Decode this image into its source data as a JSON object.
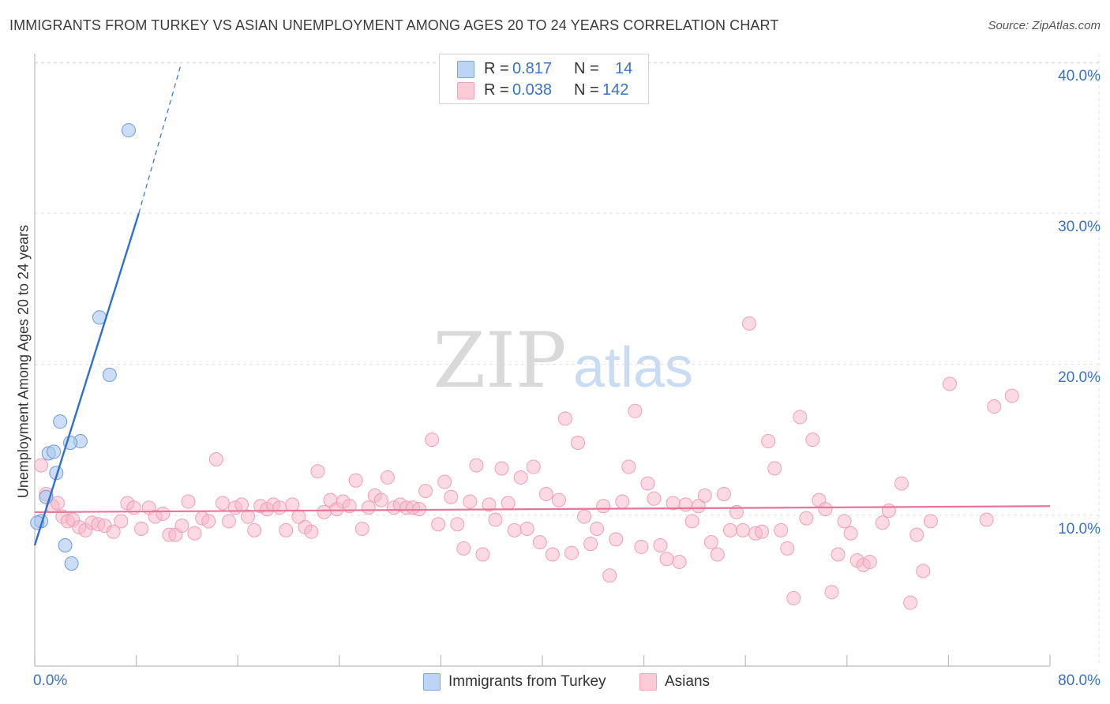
{
  "title": "IMMIGRANTS FROM TURKEY VS ASIAN UNEMPLOYMENT AMONG AGES 20 TO 24 YEARS CORRELATION CHART",
  "source": "Source: ZipAtlas.com",
  "watermark": {
    "zip": "ZIP",
    "atlas": "atlas"
  },
  "legend": {
    "series1": {
      "r_label": "R =",
      "r_value": "0.817",
      "n_label": "N =",
      "n_value": "14"
    },
    "series2": {
      "r_label": "R =",
      "r_value": "0.038",
      "n_label": "N =",
      "n_value": "142"
    }
  },
  "chart_data": {
    "type": "scatter",
    "title": "IMMIGRANTS FROM TURKEY VS ASIAN UNEMPLOYMENT AMONG AGES 20 TO 24 YEARS CORRELATION CHART",
    "xlabel": "",
    "ylabel": "Unemployment Among Ages 20 to 24 years",
    "xlim": [
      0,
      80
    ],
    "ylim": [
      0,
      40
    ],
    "x_tick_labels": [
      "0.0%",
      "80.0%"
    ],
    "y_ticks": [
      10,
      20,
      30,
      40
    ],
    "y_tick_labels": [
      "10.0%",
      "20.0%",
      "30.0%",
      "40.0%"
    ],
    "colors": {
      "series1": "#a9c8ef",
      "series1_line": "#2f6fce",
      "series2": "#f7b6c8",
      "series2_line": "#e8749a",
      "tick": "#3a72c4"
    },
    "series": [
      {
        "name": "Immigrants from Turkey",
        "r": 0.817,
        "n": 14,
        "trend": {
          "x0": 0.0,
          "y0": 8.0,
          "x1": 8.2,
          "y1": 30.0,
          "dash_to_x": 11.5,
          "dash_to_y": 39.8
        },
        "points": [
          [
            7.4,
            35.5
          ],
          [
            5.1,
            23.1
          ],
          [
            5.9,
            19.3
          ],
          [
            2.0,
            16.2
          ],
          [
            3.6,
            14.9
          ],
          [
            2.8,
            14.8
          ],
          [
            1.1,
            14.1
          ],
          [
            1.5,
            14.2
          ],
          [
            1.7,
            12.8
          ],
          [
            0.9,
            11.2
          ],
          [
            0.5,
            9.6
          ],
          [
            0.2,
            9.5
          ],
          [
            2.4,
            8.0
          ],
          [
            2.9,
            6.8
          ]
        ]
      },
      {
        "name": "Asians",
        "r": 0.038,
        "n": 142,
        "trend": {
          "x0": 0.0,
          "y0": 10.2,
          "x1": 80.0,
          "y1": 10.6
        },
        "points": [
          [
            0.5,
            13.3
          ],
          [
            0.9,
            11.4
          ],
          [
            1.4,
            10.6
          ],
          [
            1.8,
            10.8
          ],
          [
            2.2,
            9.9
          ],
          [
            2.6,
            9.6
          ],
          [
            3.0,
            9.7
          ],
          [
            3.5,
            9.2
          ],
          [
            4.0,
            9.0
          ],
          [
            4.5,
            9.5
          ],
          [
            5.0,
            9.4
          ],
          [
            5.5,
            9.3
          ],
          [
            6.2,
            8.9
          ],
          [
            6.8,
            9.6
          ],
          [
            7.3,
            10.8
          ],
          [
            7.8,
            10.5
          ],
          [
            8.4,
            9.1
          ],
          [
            9.0,
            10.5
          ],
          [
            9.5,
            9.9
          ],
          [
            10.1,
            10.1
          ],
          [
            10.6,
            8.7
          ],
          [
            11.1,
            8.7
          ],
          [
            11.6,
            9.3
          ],
          [
            12.1,
            10.9
          ],
          [
            12.6,
            8.8
          ],
          [
            13.2,
            9.8
          ],
          [
            13.7,
            9.6
          ],
          [
            14.3,
            13.7
          ],
          [
            14.8,
            10.8
          ],
          [
            15.3,
            9.6
          ],
          [
            15.8,
            10.5
          ],
          [
            16.3,
            10.7
          ],
          [
            16.8,
            9.9
          ],
          [
            17.3,
            9.0
          ],
          [
            17.8,
            10.6
          ],
          [
            18.3,
            10.4
          ],
          [
            18.8,
            10.7
          ],
          [
            19.3,
            10.5
          ],
          [
            19.8,
            9.0
          ],
          [
            20.3,
            10.7
          ],
          [
            20.8,
            9.9
          ],
          [
            21.3,
            9.2
          ],
          [
            21.8,
            8.9
          ],
          [
            22.3,
            12.9
          ],
          [
            22.8,
            10.2
          ],
          [
            23.3,
            11.0
          ],
          [
            23.8,
            10.4
          ],
          [
            24.3,
            10.9
          ],
          [
            24.8,
            10.6
          ],
          [
            25.3,
            12.3
          ],
          [
            25.8,
            9.1
          ],
          [
            26.3,
            10.5
          ],
          [
            26.8,
            11.3
          ],
          [
            27.3,
            11.0
          ],
          [
            27.8,
            12.5
          ],
          [
            28.3,
            10.5
          ],
          [
            28.8,
            10.7
          ],
          [
            29.3,
            10.5
          ],
          [
            29.8,
            10.5
          ],
          [
            30.3,
            10.4
          ],
          [
            30.8,
            11.6
          ],
          [
            31.3,
            15.0
          ],
          [
            31.8,
            9.4
          ],
          [
            32.3,
            12.2
          ],
          [
            32.8,
            11.2
          ],
          [
            33.3,
            9.4
          ],
          [
            33.8,
            7.8
          ],
          [
            34.3,
            10.9
          ],
          [
            34.8,
            13.3
          ],
          [
            35.3,
            7.4
          ],
          [
            35.8,
            10.7
          ],
          [
            36.3,
            9.7
          ],
          [
            36.8,
            13.1
          ],
          [
            37.3,
            10.8
          ],
          [
            37.8,
            9.0
          ],
          [
            38.3,
            12.5
          ],
          [
            38.8,
            9.1
          ],
          [
            39.3,
            13.2
          ],
          [
            39.8,
            8.2
          ],
          [
            40.3,
            11.4
          ],
          [
            40.8,
            7.4
          ],
          [
            41.3,
            11.0
          ],
          [
            41.8,
            16.4
          ],
          [
            42.3,
            7.5
          ],
          [
            42.8,
            14.8
          ],
          [
            43.3,
            9.9
          ],
          [
            43.8,
            8.1
          ],
          [
            44.3,
            9.1
          ],
          [
            44.8,
            10.6
          ],
          [
            45.3,
            6.0
          ],
          [
            45.8,
            8.4
          ],
          [
            46.3,
            10.9
          ],
          [
            46.8,
            13.2
          ],
          [
            47.3,
            16.9
          ],
          [
            47.8,
            7.9
          ],
          [
            48.3,
            12.1
          ],
          [
            48.8,
            11.1
          ],
          [
            49.3,
            8.0
          ],
          [
            49.8,
            7.1
          ],
          [
            50.3,
            10.8
          ],
          [
            50.8,
            6.9
          ],
          [
            51.3,
            10.7
          ],
          [
            51.8,
            9.6
          ],
          [
            52.3,
            10.6
          ],
          [
            52.8,
            11.3
          ],
          [
            53.3,
            8.2
          ],
          [
            53.8,
            7.4
          ],
          [
            54.3,
            11.4
          ],
          [
            54.8,
            9.0
          ],
          [
            55.3,
            10.2
          ],
          [
            55.8,
            9.0
          ],
          [
            56.3,
            22.7
          ],
          [
            56.8,
            8.8
          ],
          [
            57.3,
            8.9
          ],
          [
            57.8,
            14.9
          ],
          [
            58.3,
            13.1
          ],
          [
            58.8,
            9.0
          ],
          [
            59.3,
            7.8
          ],
          [
            59.8,
            4.5
          ],
          [
            60.3,
            16.5
          ],
          [
            60.8,
            9.8
          ],
          [
            61.3,
            15.0
          ],
          [
            61.8,
            11.0
          ],
          [
            62.3,
            10.4
          ],
          [
            62.8,
            4.9
          ],
          [
            63.3,
            7.4
          ],
          [
            63.8,
            9.6
          ],
          [
            64.3,
            8.8
          ],
          [
            64.8,
            7.0
          ],
          [
            65.3,
            6.7
          ],
          [
            65.8,
            6.9
          ],
          [
            66.8,
            9.5
          ],
          [
            67.3,
            10.3
          ],
          [
            68.3,
            12.1
          ],
          [
            69.0,
            4.2
          ],
          [
            69.5,
            8.7
          ],
          [
            70.0,
            6.3
          ],
          [
            70.6,
            9.6
          ],
          [
            72.1,
            18.7
          ],
          [
            75.0,
            9.7
          ],
          [
            75.6,
            17.2
          ],
          [
            77.0,
            17.9
          ]
        ]
      }
    ]
  },
  "bottom_legend": {
    "series1_label": "Immigrants from Turkey",
    "series2_label": "Asians"
  }
}
